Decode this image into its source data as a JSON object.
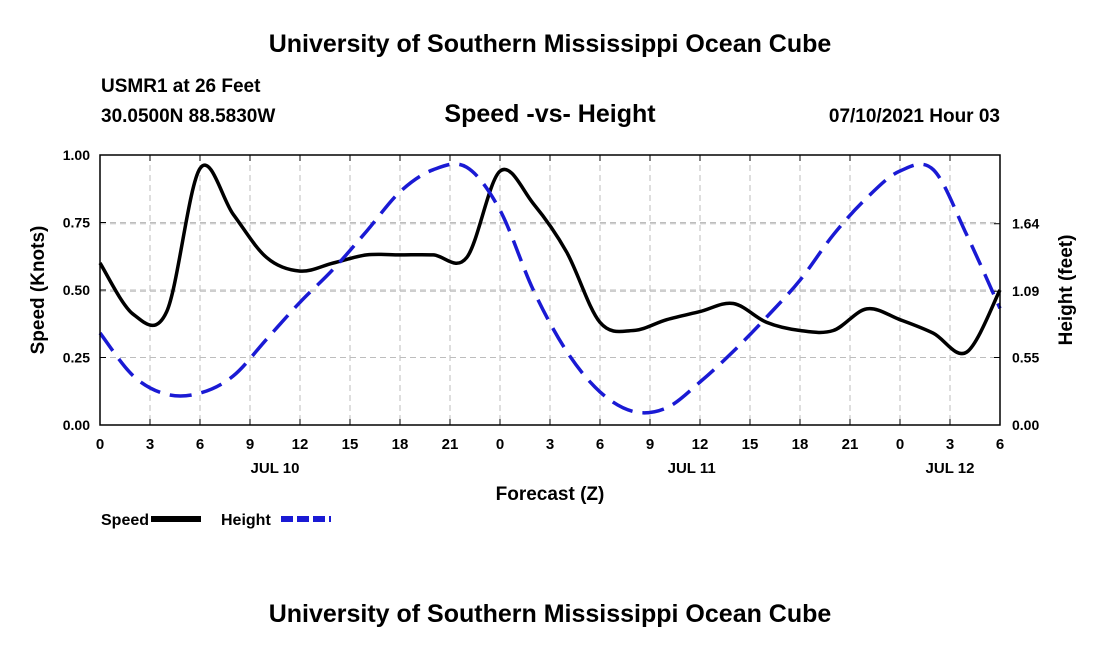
{
  "header": {
    "top_title": "University of Southern Mississippi Ocean Cube",
    "station": "USMR1 at 26 Feet",
    "coordinates": "30.0500N  88.5830W",
    "chart_title": "Speed -vs- Height",
    "issued": "07/10/2021 Hour 03",
    "bottom_title": "University of Southern Mississippi Ocean Cube"
  },
  "chart_data": {
    "type": "line",
    "title": "Speed -vs- Height",
    "xlabel": "Forecast (Z)",
    "ylabel": "Speed (Knots)",
    "y2label": "Height (feet)",
    "x_hours": [
      0,
      2,
      4,
      6,
      8,
      10,
      12,
      14,
      16,
      18,
      20,
      22,
      24,
      26,
      28,
      30,
      32,
      34,
      36,
      38,
      40,
      42,
      44,
      46,
      48,
      50,
      52,
      54
    ],
    "xlim": [
      0,
      54
    ],
    "ylim": [
      0,
      1.0
    ],
    "y2lim": [
      0,
      2.2
    ],
    "x_ticks": [
      0,
      3,
      6,
      9,
      12,
      15,
      18,
      21,
      24,
      27,
      30,
      33,
      36,
      39,
      42,
      45,
      48,
      51,
      54
    ],
    "x_tick_labels": [
      "0",
      "3",
      "6",
      "9",
      "12",
      "15",
      "18",
      "21",
      "0",
      "3",
      "6",
      "9",
      "12",
      "15",
      "18",
      "21",
      "0",
      "3",
      "6"
    ],
    "date_labels": [
      {
        "hour": 10.5,
        "label": "JUL 10"
      },
      {
        "hour": 35.5,
        "label": "JUL 11"
      },
      {
        "hour": 51,
        "label": "JUL 12"
      }
    ],
    "y_ticks": [
      0,
      0.25,
      0.5,
      0.75,
      1.0
    ],
    "y_tick_labels": [
      "0.00",
      "0.25",
      "0.50",
      "0.75",
      "1.00"
    ],
    "y2_ticks": [
      0,
      0.55,
      1.09,
      1.64
    ],
    "y2_tick_labels": [
      "0.00",
      "0.55",
      "1.09",
      "1.64"
    ],
    "grid": true,
    "series": [
      {
        "name": "Speed",
        "axis": "left",
        "color": "#000000",
        "dash": "solid",
        "values": [
          0.6,
          0.41,
          0.42,
          0.95,
          0.78,
          0.62,
          0.57,
          0.6,
          0.63,
          0.63,
          0.63,
          0.62,
          0.94,
          0.82,
          0.64,
          0.38,
          0.35,
          0.39,
          0.42,
          0.45,
          0.38,
          0.35,
          0.35,
          0.43,
          0.39,
          0.34,
          0.27,
          0.5
        ]
      },
      {
        "name": "Height",
        "axis": "right",
        "color": "#1a1ad4",
        "dash": "dashed",
        "values": [
          0.75,
          0.4,
          0.25,
          0.26,
          0.4,
          0.7,
          1.0,
          1.27,
          1.58,
          1.9,
          2.08,
          2.1,
          1.75,
          1.1,
          0.6,
          0.27,
          0.11,
          0.14,
          0.35,
          0.6,
          0.88,
          1.18,
          1.55,
          1.85,
          2.07,
          2.08,
          1.55,
          0.95
        ]
      }
    ],
    "legend": [
      {
        "label": "Speed",
        "color": "#000000"
      },
      {
        "label": "Height",
        "color": "#1a1ad4"
      }
    ],
    "legend_position": "bottom-left"
  }
}
